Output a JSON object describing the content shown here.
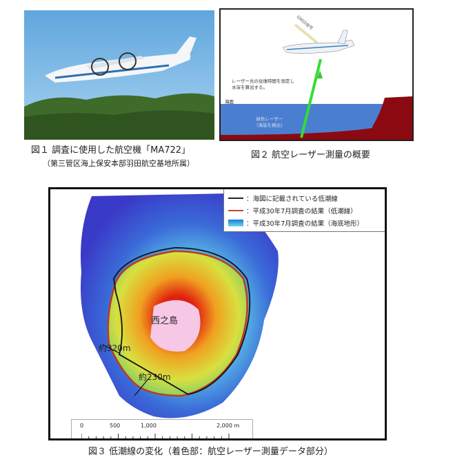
{
  "figure1": {
    "caption": "図１ 調査に使用した航空機「MA722」",
    "subcaption": "（第三管区海上保安本部羽田航空基地所属）"
  },
  "figure2": {
    "caption": "図２ 航空レーザー測量の概要",
    "labels": {
      "gnss": "GNSS信号",
      "laser_desc_1": "レーザー光の往復時間を測定し",
      "laser_desc_2": "水深を算出する。",
      "sea_surface": "海面",
      "green_laser": "緑色レーザー",
      "detect_seabed": "（海底を検出）"
    }
  },
  "figure3": {
    "caption": "図３ 低潮線の変化（着色部：航空レーザー測量データ部分）",
    "island_name": "西之島",
    "distance_1": "約320m",
    "distance_2": "約230m",
    "legend": [
      {
        "label": "：海図に記載されている低潮線",
        "color": "#222222"
      },
      {
        "label": "：平成30年7月調査の結果（低潮線）",
        "color": "#d0402a"
      },
      {
        "label": "：平成30年7月調査の結果（海底地形）",
        "color": "#2fa8e8"
      }
    ],
    "scale": {
      "ticks": [
        "0",
        "500",
        "1,000",
        "2,000 m"
      ]
    }
  }
}
